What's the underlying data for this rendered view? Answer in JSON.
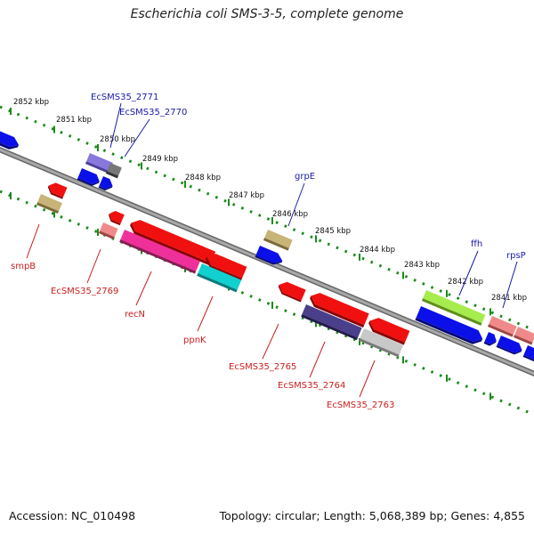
{
  "title": "Escherichia coli SMS-3-5, complete genome",
  "footer": {
    "accession": "Accession: NC_010498",
    "summary": "Topology: circular; Length: 5,068,389 bp; Genes: 4,855"
  },
  "colors": {
    "backbone": "#8c8c8c",
    "tick": "#1a8a1a",
    "label_forward": "#1a1aa8",
    "label_reverse": "#c81e1e"
  },
  "kbp_labels": [
    "2852 kbp",
    "2851 kbp",
    "2850 kbp",
    "2849 kbp",
    "2848 kbp",
    "2847 kbp",
    "2846 kbp",
    "2845 kbp",
    "2844 kbp",
    "2843 kbp",
    "2842 kbp",
    "2841 kbp"
  ],
  "gene_labels": [
    {
      "text": "EcSMS35_2771",
      "strand": "forward"
    },
    {
      "text": "EcSMS35_2770",
      "strand": "forward"
    },
    {
      "text": "grpE",
      "strand": "forward"
    },
    {
      "text": "ffh",
      "strand": "forward"
    },
    {
      "text": "rpsP",
      "strand": "forward"
    },
    {
      "text": "smpB",
      "strand": "reverse"
    },
    {
      "text": "EcSMS35_2769",
      "strand": "reverse"
    },
    {
      "text": "recN",
      "strand": "reverse"
    },
    {
      "text": "ppnK",
      "strand": "reverse"
    },
    {
      "text": "EcSMS35_2765",
      "strand": "reverse"
    },
    {
      "text": "EcSMS35_2764",
      "strand": "reverse"
    },
    {
      "text": "EcSMS35_2763",
      "strand": "reverse"
    }
  ]
}
